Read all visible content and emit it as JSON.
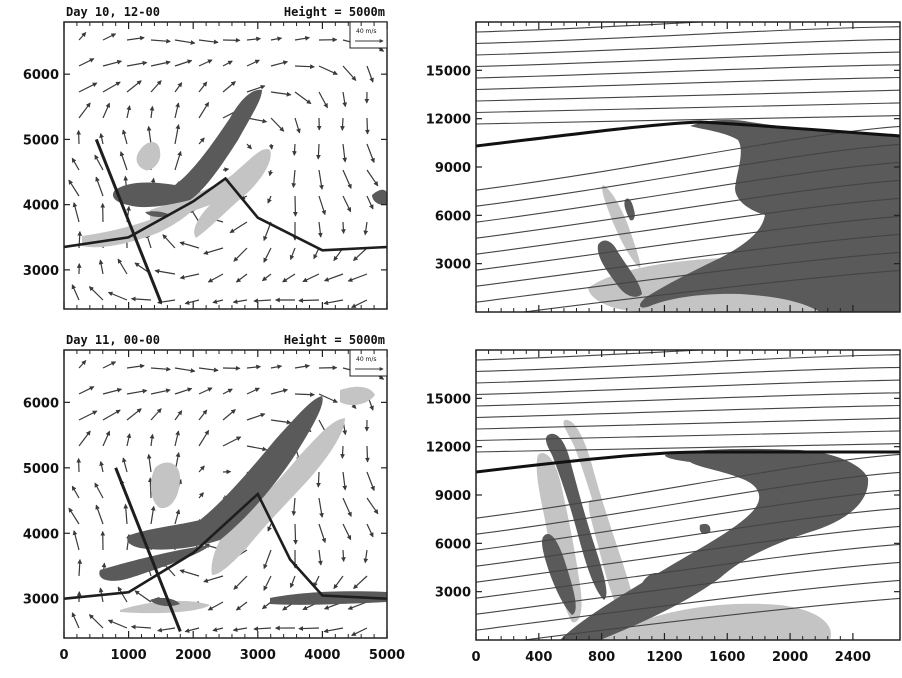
{
  "chart_data": [
    {
      "type": "vector",
      "panel": "top-left",
      "title_left": "Day 10, 12-00",
      "title_right": "Height = 5000m",
      "ref_vector_label": "40 m/s",
      "xlim": [
        0,
        5000
      ],
      "ylim": [
        2400,
        6800
      ],
      "yticks": [
        3000,
        4000,
        5000,
        6000
      ],
      "xticks": [
        0,
        1000,
        2000,
        3000,
        4000,
        5000
      ],
      "xtick_labels_shown": false,
      "colors": {
        "dark_shade": "#5a5a5a",
        "light_shade": "#c4c4c4",
        "contour": "#3a3a3a"
      },
      "cross_section_line": {
        "x": [
          500,
          1500
        ],
        "y": [
          5000,
          2500
        ]
      },
      "front_curve": {
        "x": [
          0,
          1000,
          2000,
          2500,
          3000,
          4000,
          5000
        ],
        "y": [
          3350,
          3500,
          4050,
          4400,
          3800,
          3300,
          3350
        ]
      }
    },
    {
      "type": "contour",
      "panel": "top-right",
      "xlim": [
        0,
        2700
      ],
      "ylim": [
        0,
        18000
      ],
      "yticks": [
        3000,
        6000,
        9000,
        12000,
        15000
      ],
      "xticks": [
        0,
        400,
        800,
        1200,
        1600,
        2000,
        2400
      ],
      "xtick_labels_shown": false,
      "tropopause_height": 12000
    },
    {
      "type": "vector",
      "panel": "bottom-left",
      "title_left": "Day 11, 00-00",
      "title_right": "Height = 5000m",
      "ref_vector_label": "40 m/s",
      "xlim": [
        0,
        5000
      ],
      "ylim": [
        2400,
        6800
      ],
      "yticks": [
        3000,
        4000,
        5000,
        6000
      ],
      "xticks": [
        0,
        1000,
        2000,
        3000,
        4000,
        5000
      ],
      "xtick_labels_shown": true,
      "cross_section_line": {
        "x": [
          800,
          1800
        ],
        "y": [
          5000,
          2500
        ]
      },
      "front_curve": {
        "x": [
          0,
          1000,
          2000,
          3000,
          3500,
          4000,
          5000
        ],
        "y": [
          3000,
          3100,
          3700,
          4600,
          3600,
          3050,
          3000
        ]
      }
    },
    {
      "type": "contour",
      "panel": "bottom-right",
      "xlim": [
        0,
        2700
      ],
      "ylim": [
        0,
        18000
      ],
      "yticks": [
        3000,
        6000,
        9000,
        12000,
        15000
      ],
      "xticks": [
        0,
        400,
        800,
        1200,
        1600,
        2000,
        2400
      ],
      "xtick_labels_shown": true,
      "tropopause_height": 12000
    }
  ]
}
